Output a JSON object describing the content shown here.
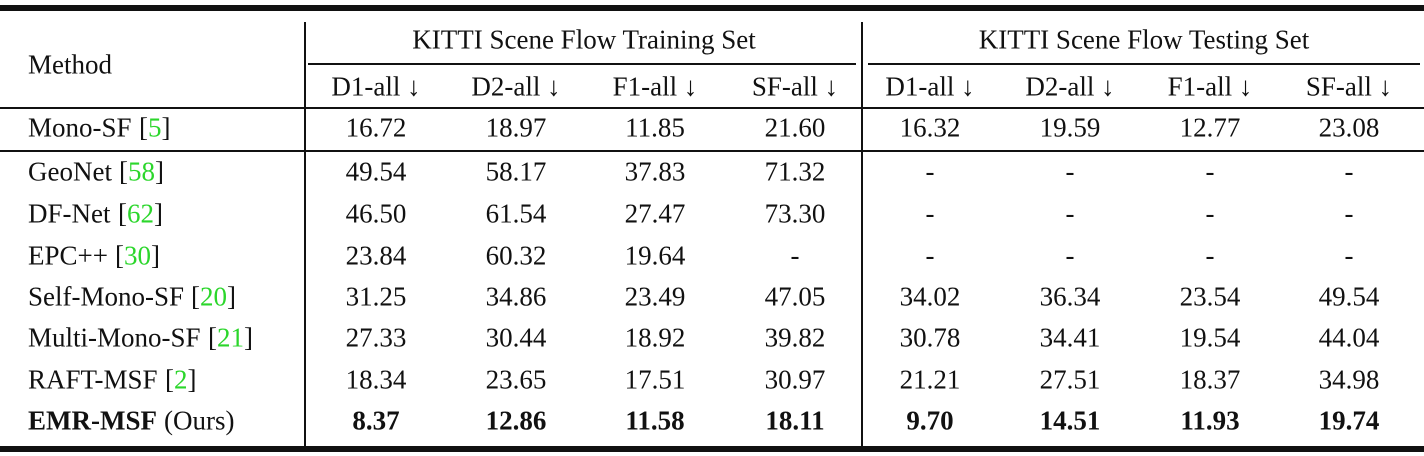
{
  "table": {
    "method_header": "Method",
    "groups": [
      "KITTI Scene Flow Training Set",
      "KITTI Scene Flow Testing Set"
    ],
    "columns": [
      "D1-all ↓",
      "D2-all ↓",
      "F1-all ↓",
      "SF-all ↓",
      "D1-all ↓",
      "D2-all ↓",
      "F1-all ↓",
      "SF-all ↓"
    ],
    "rows": [
      {
        "method": "Mono-SF",
        "cite": "[5]",
        "values": [
          "16.72",
          "18.97",
          "11.85",
          "21.60",
          "16.32",
          "19.59",
          "12.77",
          "23.08"
        ]
      },
      {
        "method": "GeoNet",
        "cite": "[58]",
        "values": [
          "49.54",
          "58.17",
          "37.83",
          "71.32",
          "-",
          "-",
          "-",
          "-"
        ]
      },
      {
        "method": "DF-Net",
        "cite": "[62]",
        "values": [
          "46.50",
          "61.54",
          "27.47",
          "73.30",
          "-",
          "-",
          "-",
          "-"
        ]
      },
      {
        "method": "EPC++",
        "cite": "[30]",
        "values": [
          "23.84",
          "60.32",
          "19.64",
          "-",
          "-",
          "-",
          "-",
          "-"
        ]
      },
      {
        "method": "Self-Mono-SF",
        "cite": "[20]",
        "values": [
          "31.25",
          "34.86",
          "23.49",
          "47.05",
          "34.02",
          "36.34",
          "23.54",
          "49.54"
        ]
      },
      {
        "method": "Multi-Mono-SF",
        "cite": "[21]",
        "values": [
          "27.33",
          "30.44",
          "18.92",
          "39.82",
          "30.78",
          "34.41",
          "19.54",
          "44.04"
        ]
      },
      {
        "method": "RAFT-MSF",
        "cite": "[2]",
        "values": [
          "18.34",
          "23.65",
          "17.51",
          "30.97",
          "21.21",
          "27.51",
          "18.37",
          "34.98"
        ]
      },
      {
        "method": "EMR-MSF",
        "suffix": "(Ours)",
        "bold": true,
        "values": [
          "8.37",
          "12.86",
          "11.58",
          "18.11",
          "9.70",
          "14.51",
          "11.93",
          "19.74"
        ]
      }
    ]
  }
}
